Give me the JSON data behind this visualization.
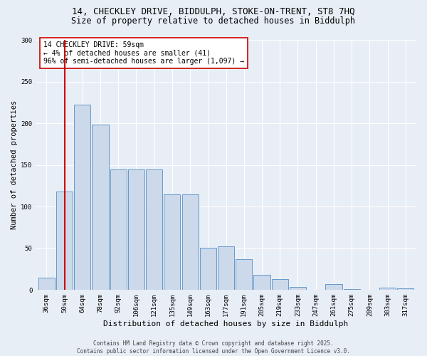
{
  "title_line1": "14, CHECKLEY DRIVE, BIDDULPH, STOKE-ON-TRENT, ST8 7HQ",
  "title_line2": "Size of property relative to detached houses in Biddulph",
  "xlabel": "Distribution of detached houses by size in Biddulph",
  "ylabel": "Number of detached properties",
  "categories": [
    "36sqm",
    "50sqm",
    "64sqm",
    "78sqm",
    "92sqm",
    "106sqm",
    "121sqm",
    "135sqm",
    "149sqm",
    "163sqm",
    "177sqm",
    "191sqm",
    "205sqm",
    "219sqm",
    "233sqm",
    "247sqm",
    "261sqm",
    "275sqm",
    "289sqm",
    "303sqm",
    "317sqm"
  ],
  "values": [
    15,
    118,
    222,
    198,
    145,
    145,
    145,
    115,
    115,
    51,
    52,
    37,
    18,
    13,
    4,
    0,
    7,
    1,
    0,
    3,
    2
  ],
  "bar_color": "#ccd9ea",
  "bar_edge_color": "#6699cc",
  "vline_x": 1,
  "vline_color": "#cc0000",
  "annotation_text": "14 CHECKLEY DRIVE: 59sqm\n← 4% of detached houses are smaller (41)\n96% of semi-detached houses are larger (1,097) →",
  "annotation_box_color": "#ffffff",
  "annotation_box_edge": "#cc0000",
  "ylim": [
    0,
    300
  ],
  "yticks": [
    0,
    50,
    100,
    150,
    200,
    250,
    300
  ],
  "bg_color": "#e8eef6",
  "plot_bg_color": "#e8eef6",
  "footer_text": "Contains HM Land Registry data © Crown copyright and database right 2025.\nContains public sector information licensed under the Open Government Licence v3.0.",
  "title_fontsize": 9,
  "subtitle_fontsize": 8.5,
  "tick_fontsize": 6.5,
  "ylabel_fontsize": 7.5,
  "xlabel_fontsize": 8,
  "annotation_fontsize": 7,
  "footer_fontsize": 5.5
}
